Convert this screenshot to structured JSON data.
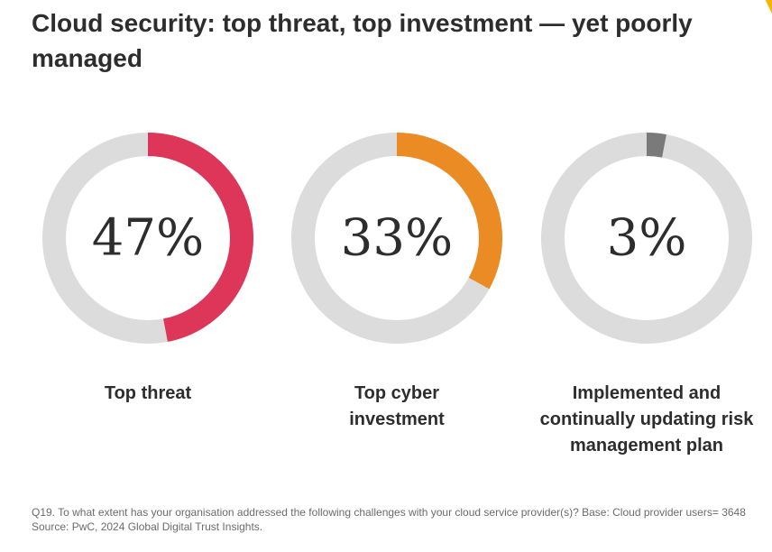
{
  "title": "Cloud security: top threat, top investment — yet poorly managed",
  "colors": {
    "track": "#dcdcdc",
    "accent_corner": "#f2b705"
  },
  "chart_data": [
    {
      "type": "pie",
      "variant": "donut",
      "value": 47,
      "value_label": "47%",
      "label": "Top threat",
      "color": "#de3658"
    },
    {
      "type": "pie",
      "variant": "donut",
      "value": 33,
      "value_label": "33%",
      "label": "Top cyber investment",
      "color": "#eb8b23"
    },
    {
      "type": "pie",
      "variant": "donut",
      "value": 3,
      "value_label": "3%",
      "label": "Implemented and continually updating risk management plan",
      "color": "#7a7a7a"
    }
  ],
  "footnote": {
    "question": "Q19. To what extent has your organisation addressed the following challenges with your cloud service provider(s)? Base: Cloud provider users= 3648",
    "source": "Source: PwC, 2024 Global Digital Trust Insights."
  }
}
